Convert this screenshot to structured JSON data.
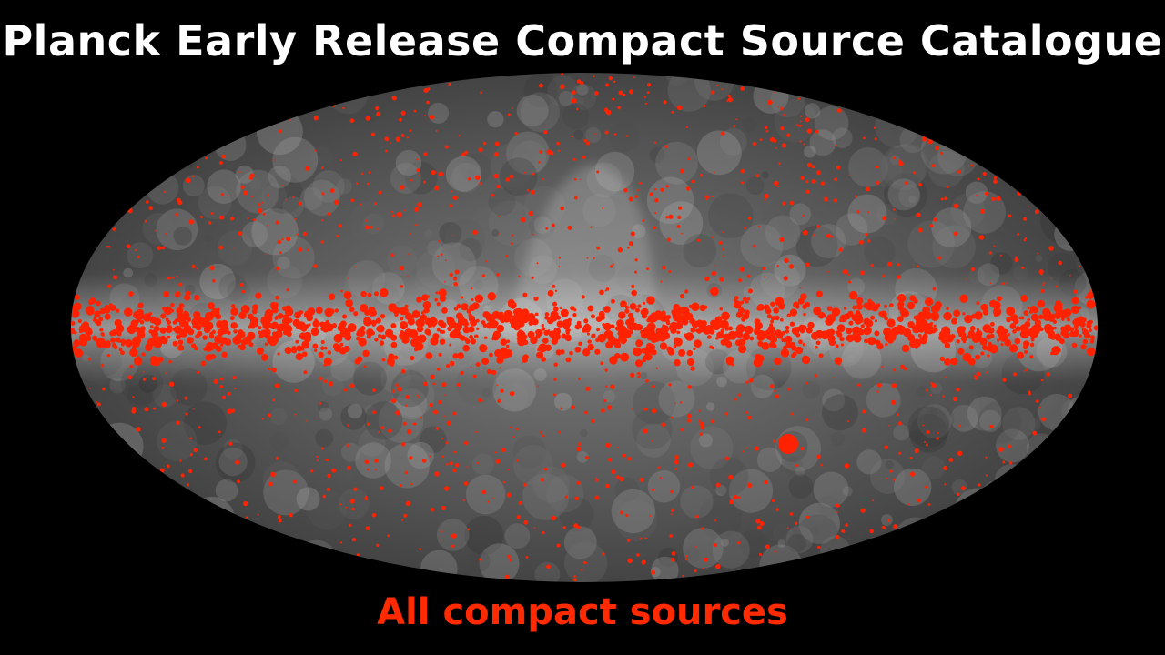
{
  "title": "Planck Early Release Compact Source Catalogue",
  "subtitle": "All compact sources",
  "map": {
    "projection": "Mollweide all-sky",
    "background_style": "greyscale sky emission",
    "marker_color": "#ff2200",
    "subtitle_color": "#ff2a00"
  }
}
